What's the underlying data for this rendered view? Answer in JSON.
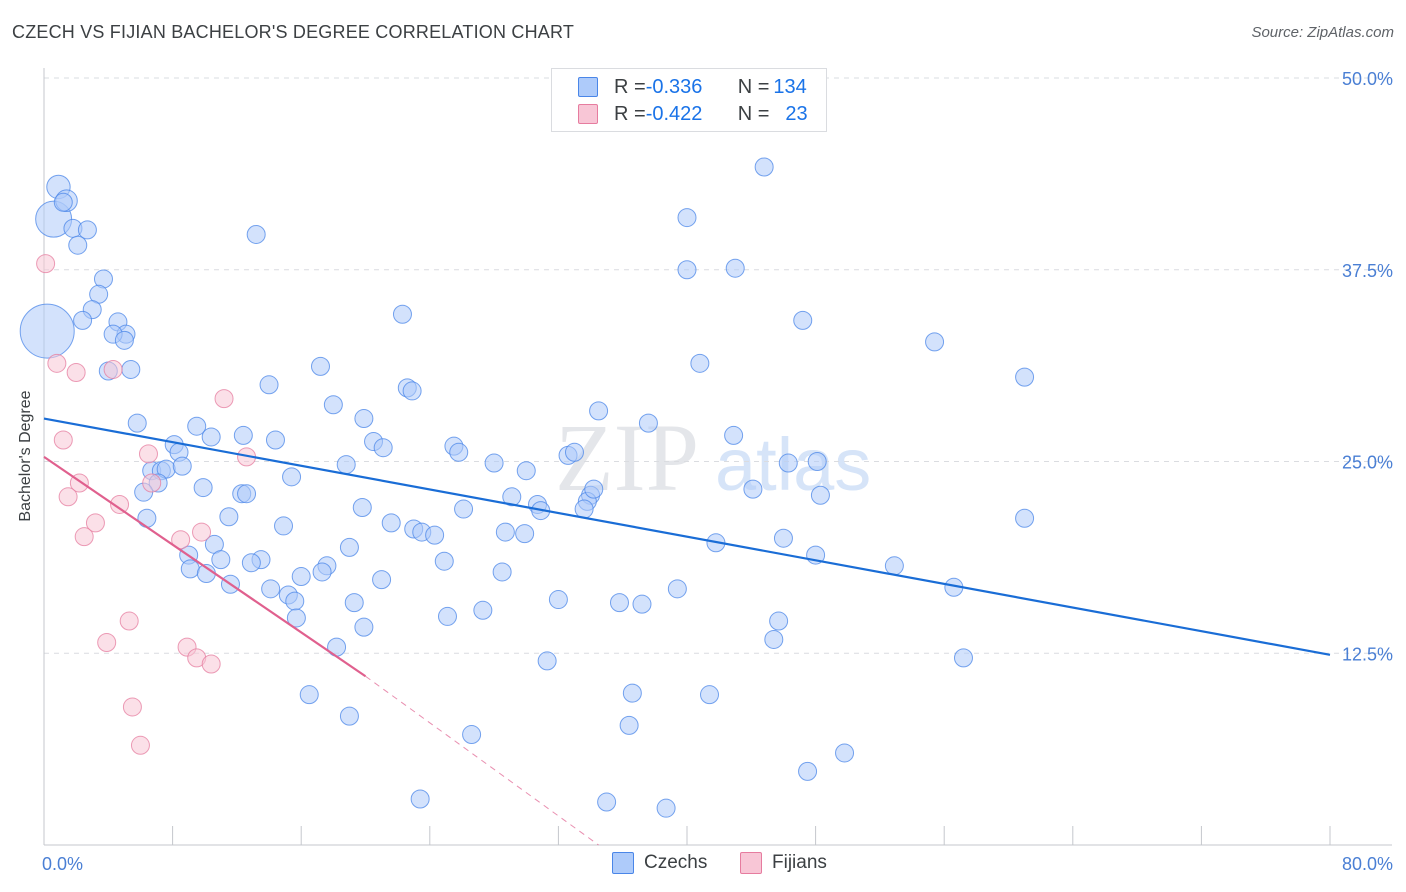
{
  "title": "CZECH VS FIJIAN BACHELOR'S DEGREE CORRELATION CHART",
  "source": "Source: ZipAtlas.com",
  "watermark": {
    "zip": "ZIP",
    "atlas": "atlas"
  },
  "legend": {
    "rows": [
      {
        "r_label": "R = ",
        "r_value": "-0.336",
        "n_label": "N = ",
        "n_value": "134",
        "color": "#aecbfa",
        "border": "#4a86e8"
      },
      {
        "r_label": "R = ",
        "r_value": "-0.422",
        "n_label": "N = ",
        "n_value": "23",
        "color": "#f8c6d6",
        "border": "#e67c9f"
      }
    ]
  },
  "bottom_legend": [
    {
      "label": "Czechs",
      "color": "#aecbfa",
      "border": "#4a86e8"
    },
    {
      "label": "Fijians",
      "color": "#f8c6d6",
      "border": "#e67c9f"
    }
  ],
  "chart_data": {
    "type": "scatter",
    "title": "CZECH VS FIJIAN BACHELOR'S DEGREE CORRELATION CHART",
    "xlabel": "",
    "ylabel": "Bachelor's Degree",
    "xlim": [
      0,
      80
    ],
    "ylim": [
      0,
      50
    ],
    "x_tick_labels": [
      {
        "value": 0,
        "label": "0.0%"
      },
      {
        "value": 80,
        "label": "80.0%"
      }
    ],
    "y_tick_labels": [
      {
        "value": 12.5,
        "label": "12.5%"
      },
      {
        "value": 25,
        "label": "25.0%"
      },
      {
        "value": 37.5,
        "label": "37.5%"
      },
      {
        "value": 50,
        "label": "50.0%"
      }
    ],
    "x_minor_ticks": [
      0,
      8,
      16,
      24,
      32,
      40,
      48,
      56,
      64,
      72,
      80
    ],
    "grid": true,
    "series": [
      {
        "name": "Czechs",
        "color": "#4a86e8",
        "fill": "#aecbfa",
        "trend": {
          "x0": 0,
          "y0": 27.8,
          "x1": 80,
          "y1": 12.4,
          "color": "#1a6dd6"
        },
        "points": [
          [
            0.2,
            33.5,
            3
          ],
          [
            0.6,
            40.8,
            2
          ],
          [
            0.9,
            42.9,
            1.3
          ],
          [
            1.4,
            42.0,
            1.2
          ],
          [
            1.2,
            41.9,
            1
          ],
          [
            1.8,
            40.2,
            1
          ],
          [
            2.7,
            40.1,
            1
          ],
          [
            2.1,
            39.1,
            1
          ],
          [
            3.7,
            36.9,
            1
          ],
          [
            3.4,
            35.9,
            1
          ],
          [
            3.0,
            34.9,
            1
          ],
          [
            2.4,
            34.2,
            1
          ],
          [
            4.6,
            34.1,
            1
          ],
          [
            5.1,
            33.3,
            1
          ],
          [
            4.3,
            33.3,
            1
          ],
          [
            5.0,
            32.9,
            1
          ],
          [
            4.0,
            30.9,
            1
          ],
          [
            5.4,
            31.0,
            1
          ],
          [
            13.2,
            39.8,
            1
          ],
          [
            22.3,
            34.6,
            1
          ],
          [
            17.2,
            31.2,
            1
          ],
          [
            14.0,
            30.0,
            1
          ],
          [
            22.6,
            29.8,
            1
          ],
          [
            22.9,
            29.6,
            1
          ],
          [
            18.0,
            28.7,
            1
          ],
          [
            19.9,
            27.8,
            1
          ],
          [
            5.8,
            27.5,
            1
          ],
          [
            9.5,
            27.3,
            1
          ],
          [
            8.1,
            26.1,
            1
          ],
          [
            8.4,
            25.6,
            1
          ],
          [
            10.4,
            26.6,
            1
          ],
          [
            12.4,
            26.7,
            1
          ],
          [
            14.4,
            26.4,
            1
          ],
          [
            20.5,
            26.3,
            1
          ],
          [
            21.1,
            25.9,
            1
          ],
          [
            25.5,
            26.0,
            1
          ],
          [
            25.8,
            25.6,
            1
          ],
          [
            6.7,
            24.4,
            1
          ],
          [
            7.3,
            24.4,
            1
          ],
          [
            7.6,
            24.5,
            1
          ],
          [
            8.6,
            24.7,
            1
          ],
          [
            7.1,
            23.6,
            1
          ],
          [
            18.8,
            24.8,
            1
          ],
          [
            15.4,
            24.0,
            1
          ],
          [
            6.2,
            23.0,
            1
          ],
          [
            9.9,
            23.3,
            1
          ],
          [
            12.3,
            22.9,
            1
          ],
          [
            12.6,
            22.9,
            1
          ],
          [
            28.0,
            24.9,
            1
          ],
          [
            30.0,
            24.4,
            1
          ],
          [
            32.6,
            25.4,
            1
          ],
          [
            33.0,
            25.6,
            1
          ],
          [
            34.5,
            28.3,
            1
          ],
          [
            37.6,
            27.5,
            1
          ],
          [
            42.9,
            26.7,
            1
          ],
          [
            46.3,
            24.9,
            1
          ],
          [
            48.1,
            25.0,
            1
          ],
          [
            29.1,
            22.7,
            1
          ],
          [
            30.7,
            22.2,
            1
          ],
          [
            30.9,
            21.8,
            1
          ],
          [
            34.0,
            22.8,
            1
          ],
          [
            33.8,
            22.4,
            1
          ],
          [
            33.6,
            21.9,
            1
          ],
          [
            26.1,
            21.9,
            1
          ],
          [
            19.8,
            22.0,
            1
          ],
          [
            6.4,
            21.3,
            1
          ],
          [
            11.5,
            21.4,
            1
          ],
          [
            14.9,
            20.8,
            1
          ],
          [
            21.6,
            21.0,
            1
          ],
          [
            23.0,
            20.6,
            1
          ],
          [
            23.5,
            20.4,
            1
          ],
          [
            24.3,
            20.2,
            1
          ],
          [
            28.7,
            20.4,
            1
          ],
          [
            29.9,
            20.3,
            1
          ],
          [
            9.0,
            18.9,
            1
          ],
          [
            10.6,
            19.6,
            1
          ],
          [
            11.0,
            18.6,
            1
          ],
          [
            13.5,
            18.6,
            1
          ],
          [
            19.0,
            19.4,
            1
          ],
          [
            9.1,
            18.0,
            1
          ],
          [
            10.1,
            17.7,
            1
          ],
          [
            11.6,
            17.0,
            1
          ],
          [
            12.9,
            18.4,
            1
          ],
          [
            17.6,
            18.2,
            1
          ],
          [
            17.3,
            17.8,
            1
          ],
          [
            16.0,
            17.5,
            1
          ],
          [
            21.0,
            17.3,
            1
          ],
          [
            24.9,
            18.5,
            1
          ],
          [
            28.5,
            17.8,
            1
          ],
          [
            14.1,
            16.7,
            1
          ],
          [
            15.2,
            16.3,
            1
          ],
          [
            15.6,
            15.9,
            1
          ],
          [
            19.3,
            15.8,
            1
          ],
          [
            32.0,
            16.0,
            1
          ],
          [
            35.8,
            15.8,
            1
          ],
          [
            37.2,
            15.7,
            1
          ],
          [
            39.4,
            16.7,
            1
          ],
          [
            45.7,
            14.6,
            1
          ],
          [
            25.1,
            14.9,
            1
          ],
          [
            27.3,
            15.3,
            1
          ],
          [
            15.7,
            14.8,
            1
          ],
          [
            19.9,
            14.2,
            1
          ],
          [
            45.4,
            13.4,
            1
          ],
          [
            18.2,
            12.9,
            1
          ],
          [
            31.3,
            12.0,
            1
          ],
          [
            57.2,
            12.2,
            1
          ],
          [
            36.6,
            9.9,
            1
          ],
          [
            41.4,
            9.8,
            1
          ],
          [
            16.5,
            9.8,
            1
          ],
          [
            19.0,
            8.4,
            1
          ],
          [
            36.4,
            7.8,
            1
          ],
          [
            26.6,
            7.2,
            1
          ],
          [
            49.8,
            6.0,
            1
          ],
          [
            47.5,
            4.8,
            1
          ],
          [
            23.4,
            3.0,
            1
          ],
          [
            35.0,
            2.8,
            1
          ],
          [
            38.7,
            2.4,
            1
          ],
          [
            44.8,
            44.2,
            1
          ],
          [
            40.0,
            40.9,
            1
          ],
          [
            40.0,
            37.5,
            1
          ],
          [
            43.0,
            37.6,
            1
          ],
          [
            47.2,
            34.2,
            1
          ],
          [
            55.4,
            32.8,
            1
          ],
          [
            61.0,
            30.5,
            1
          ],
          [
            40.8,
            31.4,
            1
          ],
          [
            52.9,
            18.2,
            1
          ],
          [
            48.0,
            18.9,
            1
          ],
          [
            46.0,
            20.0,
            1
          ],
          [
            41.8,
            19.7,
            1
          ],
          [
            56.6,
            16.8,
            1
          ],
          [
            61.0,
            21.3,
            1
          ],
          [
            44.1,
            23.2,
            1
          ],
          [
            48.3,
            22.8,
            1
          ],
          [
            34.2,
            23.2,
            1
          ]
        ]
      },
      {
        "name": "Fijians",
        "color": "#e67c9f",
        "fill": "#f8c6d6",
        "trend": {
          "x0": 0,
          "y0": 25.3,
          "x1": 20.0,
          "y1": 11.0,
          "dash_x1": 34.5,
          "dash_y1": 0.0,
          "color": "#e0608e"
        },
        "points": [
          [
            0.1,
            37.9,
            1
          ],
          [
            0.8,
            31.4,
            1
          ],
          [
            2.0,
            30.8,
            1
          ],
          [
            1.2,
            26.4,
            1
          ],
          [
            4.3,
            31.0,
            1
          ],
          [
            11.2,
            29.1,
            1
          ],
          [
            12.6,
            25.3,
            1
          ],
          [
            6.5,
            25.5,
            1
          ],
          [
            2.2,
            23.6,
            1
          ],
          [
            1.5,
            22.7,
            1
          ],
          [
            4.7,
            22.2,
            1
          ],
          [
            3.2,
            21.0,
            1
          ],
          [
            2.5,
            20.1,
            1
          ],
          [
            6.7,
            23.6,
            1
          ],
          [
            9.8,
            20.4,
            1
          ],
          [
            8.5,
            19.9,
            1
          ],
          [
            5.3,
            14.6,
            1
          ],
          [
            3.9,
            13.2,
            1
          ],
          [
            8.9,
            12.9,
            1
          ],
          [
            9.5,
            12.2,
            1
          ],
          [
            10.4,
            11.8,
            1
          ],
          [
            5.5,
            9.0,
            1
          ],
          [
            6.0,
            6.5,
            1
          ]
        ]
      }
    ]
  }
}
